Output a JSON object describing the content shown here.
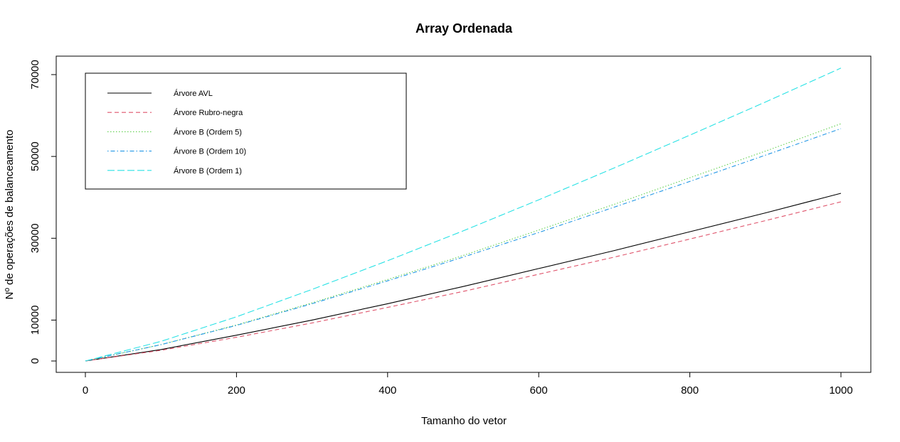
{
  "chart_data": {
    "type": "line",
    "title": "Array Ordenada",
    "xlabel": "Tamanho do vetor",
    "ylabel": "Nº de operações de balanceamento",
    "xlim": [
      0,
      1000
    ],
    "ylim": [
      0,
      71500
    ],
    "x_ticks": [
      0,
      200,
      400,
      600,
      800,
      1000
    ],
    "y_ticks": [
      0,
      10000,
      30000,
      50000,
      70000
    ],
    "grid": false,
    "legend_position": "top-left",
    "x": [
      0,
      100,
      200,
      300,
      400,
      500,
      600,
      700,
      800,
      900,
      1000
    ],
    "series": [
      {
        "name": "Árvore AVL",
        "color": "#000000",
        "dash": "solid",
        "values": [
          0,
          2800,
          6300,
          10000,
          14000,
          18200,
          22600,
          27000,
          31600,
          36200,
          41000
        ]
      },
      {
        "name": "Árvore Rubro-negra",
        "color": "#DF536B",
        "dash": "dashed",
        "values": [
          0,
          2600,
          5800,
          9300,
          13100,
          17000,
          21200,
          25400,
          29800,
          34300,
          38900
        ]
      },
      {
        "name": "Árvore B (Ordem 5)",
        "color": "#61D04F",
        "dash": "dotted",
        "values": [
          0,
          4000,
          8800,
          14200,
          19900,
          25800,
          32000,
          38300,
          44800,
          51300,
          58000
        ]
      },
      {
        "name": "Árvore B (Ordem 10)",
        "color": "#2297E6",
        "dash": "dotdash",
        "values": [
          0,
          4000,
          8700,
          14000,
          19600,
          25400,
          31400,
          37600,
          43900,
          50300,
          56800
        ]
      },
      {
        "name": "Árvore B (Ordem 1)",
        "color": "#28E2E5",
        "dash": "longdash",
        "values": [
          0,
          4800,
          10800,
          17500,
          24500,
          31800,
          39400,
          47200,
          55200,
          63300,
          71600
        ]
      }
    ]
  }
}
